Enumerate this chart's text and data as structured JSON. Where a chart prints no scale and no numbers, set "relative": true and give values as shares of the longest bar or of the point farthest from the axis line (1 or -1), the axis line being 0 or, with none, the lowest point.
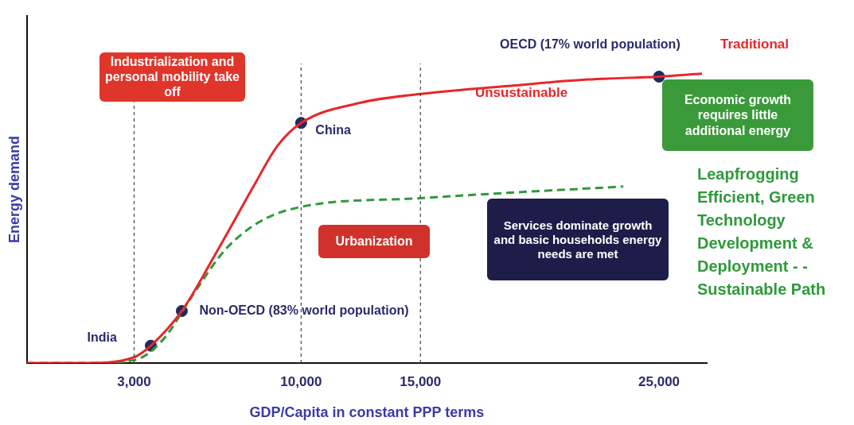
{
  "chart_data": {
    "type": "line",
    "relative": true,
    "xlabel": "GDP/Capita in constant PPP terms",
    "ylabel": "Energy demand",
    "xlim": [
      -1500,
      27000
    ],
    "xticks": [
      {
        "value": 3000,
        "label": "3,000"
      },
      {
        "value": 10000,
        "label": "10,000"
      },
      {
        "value": 15000,
        "label": "15,000"
      },
      {
        "value": 25000,
        "label": "25,000"
      }
    ],
    "grid": false,
    "legend": false,
    "marker": "none",
    "series": [
      {
        "name": "Traditional",
        "color": "#e8262a",
        "line_style": "solid",
        "x": [
          -1500,
          1000,
          3000,
          3700,
          5000,
          6500,
          8000,
          9000,
          10000,
          12500,
          15000,
          19000,
          22000,
          25000,
          26800
        ],
        "values": [
          0,
          0,
          0.02,
          0.06,
          0.18,
          0.39,
          0.61,
          0.75,
          0.83,
          0.9,
          0.93,
          0.96,
          0.98,
          0.99,
          1
        ]
      },
      {
        "name": "Leapfrogging Efficient, Green Technology Development & Deployment - - Sustainable Path",
        "color": "#2e9a3a",
        "line_style": "dashed",
        "x": [
          -1500,
          1000,
          3000,
          4200,
          5500,
          6800,
          8300,
          10000,
          15000,
          19000,
          23500
        ],
        "values": [
          0,
          0,
          0.01,
          0.08,
          0.24,
          0.39,
          0.49,
          0.54,
          0.57,
          0.59,
          0.61
        ]
      },
      {
        "type": "scatter",
        "color": "#1f2a5c",
        "marker": "circle",
        "x": [
          3700,
          5000,
          10000,
          25000
        ],
        "values": [
          0.06,
          0.18,
          0.83,
          0.99
        ]
      }
    ],
    "ref_lines": [
      {
        "axis": "x",
        "value": 3000,
        "color": "#444444",
        "line_style": "dashed"
      },
      {
        "axis": "x",
        "value": 10000,
        "color": "#444444",
        "line_style": "dashed"
      },
      {
        "axis": "x",
        "value": 15000,
        "color": "#444444",
        "line_style": "dashed"
      }
    ],
    "annotations": [
      {
        "text": "India",
        "x": 3700,
        "y": 0.06
      },
      {
        "text": "Non-OECD (83% world population)",
        "x": 5000,
        "y": 0.18
      },
      {
        "text": "China",
        "x": 10000,
        "y": 0.83
      },
      {
        "text": "OECD (17% world population)",
        "x": 25000,
        "y": 0.99
      },
      "Industrialization and personal mobility take off",
      "Unsustainable",
      "Economic growth requires little additional energy",
      "Services dominate growth and basic households energy needs are met",
      "Urbanization"
    ]
  }
}
